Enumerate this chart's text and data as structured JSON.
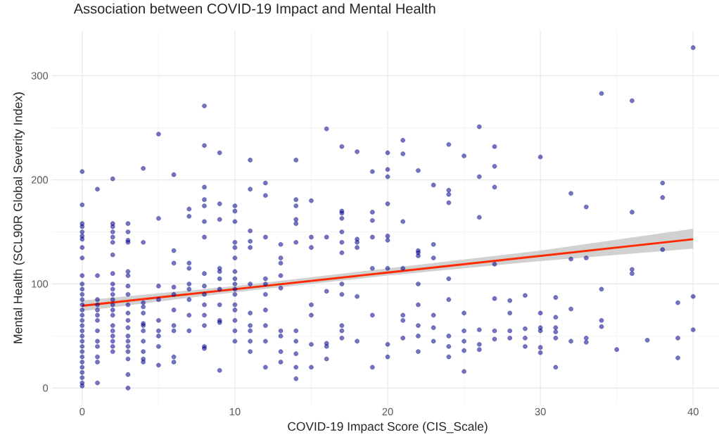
{
  "chart_data": {
    "type": "scatter",
    "title": "Association between COVID-19 Impact and Mental Health",
    "xlabel": "COVID-19 Impact Score (CIS_Scale)",
    "ylabel": "Mental Health (SCL90R Global Severity Index)",
    "xlim": [
      -2,
      42
    ],
    "ylim": [
      -16,
      343
    ],
    "xticks": [
      0,
      10,
      20,
      30,
      40
    ],
    "yticks": [
      0,
      100,
      200,
      300
    ],
    "grid": true,
    "marker": "circle",
    "series": [
      {
        "type": "scatter",
        "color": "#00008b",
        "x": [
          0,
          0,
          0,
          0,
          0,
          0,
          0,
          0,
          0,
          0,
          0,
          0,
          0,
          0,
          0,
          0,
          0,
          0,
          0,
          0,
          0,
          0,
          0,
          0,
          0,
          0,
          0,
          0,
          0,
          0,
          0,
          1,
          1,
          1,
          1,
          1,
          1,
          1,
          1,
          1,
          1,
          1,
          1,
          1,
          2,
          2,
          2,
          2,
          2,
          2,
          2,
          2,
          2,
          2,
          2,
          2,
          2,
          2,
          2,
          2,
          2,
          2,
          2,
          2,
          2,
          3,
          3,
          3,
          3,
          3,
          3,
          3,
          3,
          3,
          3,
          3,
          3,
          3,
          3,
          3,
          3,
          3,
          3,
          3,
          4,
          4,
          4,
          4,
          4,
          4,
          4,
          4,
          4,
          4,
          4,
          4,
          5,
          5,
          5,
          5,
          5,
          5,
          5,
          5,
          5,
          6,
          6,
          6,
          6,
          6,
          6,
          6,
          6,
          6,
          6,
          7,
          7,
          7,
          7,
          7,
          7,
          7,
          7,
          7,
          8,
          8,
          8,
          8,
          8,
          8,
          8,
          8,
          8,
          8,
          8,
          8,
          8,
          8,
          8,
          9,
          9,
          9,
          9,
          9,
          9,
          9,
          9,
          9,
          9,
          9,
          10,
          10,
          10,
          10,
          10,
          10,
          10,
          10,
          10,
          10,
          10,
          10,
          10,
          10,
          10,
          10,
          11,
          11,
          11,
          11,
          11,
          11,
          11,
          11,
          11,
          11,
          11,
          12,
          12,
          12,
          12,
          12,
          12,
          12,
          12,
          12,
          12,
          13,
          13,
          13,
          13,
          13,
          13,
          13,
          13,
          13,
          14,
          14,
          14,
          14,
          14,
          14,
          14,
          14,
          14,
          14,
          14,
          15,
          15,
          15,
          15,
          15,
          15,
          15,
          16,
          16,
          16,
          16,
          16,
          16,
          17,
          17,
          17,
          17,
          17,
          17,
          17,
          17,
          17,
          17,
          17,
          17,
          18,
          18,
          18,
          18,
          18,
          18,
          19,
          19,
          19,
          19,
          19,
          19,
          19,
          20,
          20,
          20,
          20,
          20,
          20,
          20,
          20,
          20,
          21,
          21,
          21,
          21,
          21,
          21,
          21,
          22,
          22,
          22,
          22,
          22,
          22,
          22,
          22,
          22,
          23,
          23,
          23,
          23,
          23,
          23,
          24,
          24,
          24,
          24,
          24,
          24,
          24,
          24,
          24,
          25,
          25,
          25,
          25,
          25,
          25,
          26,
          26,
          26,
          26,
          26,
          26,
          27,
          27,
          27,
          27,
          27,
          27,
          27,
          28,
          28,
          28,
          28,
          29,
          29,
          29,
          29,
          30,
          30,
          30,
          30,
          30,
          30,
          31,
          31,
          31,
          31,
          31,
          31,
          32,
          32,
          32,
          32,
          33,
          33,
          33,
          33,
          34,
          34,
          34,
          34,
          35,
          36,
          36,
          36,
          36,
          37,
          38,
          38,
          38,
          39,
          39,
          39,
          40,
          40,
          40
        ],
        "values": [
          208,
          176,
          158,
          155,
          150,
          146,
          143,
          135,
          125,
          108,
          100,
          95,
          90,
          85,
          80,
          75,
          70,
          65,
          60,
          55,
          50,
          45,
          40,
          35,
          30,
          25,
          20,
          15,
          10,
          5,
          2,
          191,
          108,
          85,
          80,
          75,
          70,
          65,
          55,
          45,
          40,
          30,
          25,
          5,
          201,
          158,
          155,
          150,
          145,
          140,
          128,
          110,
          100,
          95,
          90,
          85,
          80,
          75,
          70,
          60,
          55,
          50,
          45,
          40,
          35,
          158,
          150,
          142,
          140,
          112,
          108,
          98,
          90,
          80,
          72,
          65,
          58,
          50,
          45,
          40,
          35,
          28,
          13,
          0,
          211,
          140,
          82,
          78,
          72,
          62,
          60,
          55,
          45,
          35,
          28,
          25,
          244,
          163,
          98,
          85,
          65,
          55,
          50,
          40,
          22,
          205,
          132,
          120,
          97,
          90,
          75,
          60,
          55,
          30,
          25,
          172,
          165,
          120,
          115,
          100,
          95,
          85,
          70,
          55,
          271,
          233,
          193,
          181,
          175,
          160,
          145,
          110,
          98,
          90,
          80,
          70,
          60,
          40,
          38,
          226,
          177,
          162,
          115,
          112,
          105,
          95,
          80,
          65,
          63,
          17,
          175,
          170,
          160,
          140,
          135,
          125,
          112,
          105,
          100,
          95,
          90,
          80,
          75,
          65,
          55,
          45,
          219,
          191,
          151,
          141,
          135,
          100,
          72,
          60,
          55,
          45,
          35,
          197,
          185,
          145,
          105,
          100,
          90,
          75,
          60,
          45,
          20,
          138,
          125,
          120,
          108,
          96,
          55,
          50,
          35,
          25,
          219,
          181,
          175,
          162,
          158,
          140,
          55,
          45,
          33,
          20,
          9,
          180,
          145,
          135,
          80,
          70,
          42,
          20,
          249,
          145,
          93,
          43,
          40,
          28,
          232,
          170,
          168,
          163,
          150,
          140,
          130,
          100,
          90,
          60,
          55,
          48,
          227,
          143,
          140,
          135,
          88,
          45,
          208,
          169,
          161,
          145,
          115,
          70,
          20,
          226,
          210,
          203,
          177,
          146,
          142,
          115,
          42,
          30,
          238,
          225,
          160,
          115,
          70,
          65,
          48,
          209,
          132,
          130,
          127,
          100,
          80,
          60,
          50,
          35,
          195,
          138,
          125,
          70,
          58,
          45,
          234,
          190,
          186,
          178,
          105,
          85,
          50,
          40,
          30,
          223,
          72,
          55,
          45,
          36,
          16,
          251,
          203,
          164,
          56,
          42,
          37,
          232,
          213,
          193,
          119,
          86,
          55,
          47,
          84,
          72,
          55,
          48,
          89,
          57,
          48,
          40,
          222,
          72,
          58,
          55,
          39,
          34,
          87,
          68,
          58,
          54,
          48,
          20,
          187,
          124,
          76,
          45,
          174,
          125,
          48,
          44,
          283,
          95,
          65,
          59,
          37,
          276,
          169,
          114,
          110,
          46,
          197,
          183,
          133,
          82,
          48,
          29,
          327,
          88,
          56
        ]
      },
      {
        "type": "line",
        "marker": "none",
        "color": "#ff2a00",
        "x": [
          0,
          10,
          20,
          30,
          40
        ],
        "values": [
          79,
          95,
          111,
          127,
          143
        ],
        "lower": [
          74,
          92,
          108,
          122,
          134
        ],
        "upper": [
          84,
          98,
          115,
          132,
          153
        ]
      }
    ]
  }
}
